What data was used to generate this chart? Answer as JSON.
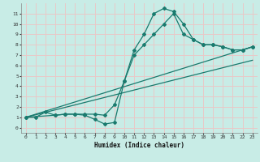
{
  "xlabel": "Humidex (Indice chaleur)",
  "bg_color": "#c8ece6",
  "grid_color": "#e8c8c8",
  "line_color": "#1a7a6e",
  "xlim": [
    -0.5,
    23.5
  ],
  "ylim": [
    -0.5,
    12
  ],
  "xticks": [
    0,
    1,
    2,
    3,
    4,
    5,
    6,
    7,
    8,
    9,
    10,
    11,
    12,
    13,
    14,
    15,
    16,
    17,
    18,
    19,
    20,
    21,
    22,
    23
  ],
  "yticks": [
    0,
    1,
    2,
    3,
    4,
    5,
    6,
    7,
    8,
    9,
    10,
    11
  ],
  "curve1_x": [
    0,
    1,
    2,
    3,
    4,
    5,
    6,
    7,
    8,
    9,
    10,
    11,
    12,
    13,
    14,
    15,
    16,
    17,
    18,
    19,
    20,
    21,
    22,
    23
  ],
  "curve1_y": [
    1,
    1,
    1.5,
    1.2,
    1.3,
    1.3,
    1.2,
    0.8,
    0.35,
    0.5,
    4.5,
    7.5,
    9,
    11,
    11.5,
    11.2,
    10,
    8.5,
    8,
    8,
    7.8,
    7.5,
    7.5,
    7.8
  ],
  "curve2_x": [
    0,
    3,
    4,
    5,
    6,
    7,
    8,
    9,
    10,
    11,
    12,
    13,
    14,
    15,
    16,
    17,
    18,
    19,
    20,
    21,
    22,
    23
  ],
  "curve2_y": [
    1,
    1.2,
    1.3,
    1.3,
    1.3,
    1.3,
    1.2,
    2.2,
    4.5,
    7,
    8,
    9,
    10,
    11,
    9,
    8.5,
    8,
    8,
    7.8,
    7.5,
    7.5,
    7.8
  ],
  "line3_x": [
    0,
    23
  ],
  "line3_y": [
    1,
    7.8
  ],
  "line4_x": [
    0,
    23
  ],
  "line4_y": [
    1,
    6.5
  ]
}
